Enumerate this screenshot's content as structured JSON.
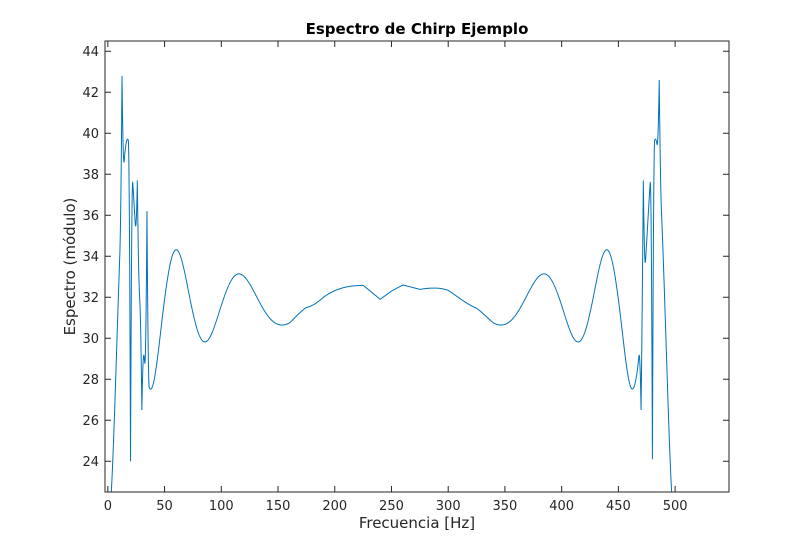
{
  "chart_data": {
    "type": "line",
    "title": "Espectro de Chirp Ejemplo",
    "xlabel": "Frecuencia [Hz]",
    "ylabel": "Espectro (módulo)",
    "xlim": [
      -2.5,
      547.5
    ],
    "ylim": [
      22.5,
      44.5
    ],
    "x_ticks": [
      0,
      50,
      100,
      150,
      200,
      250,
      300,
      350,
      400,
      450,
      500
    ],
    "x_tick_labels": [
      "0",
      "50",
      "100",
      "150",
      "200",
      "250",
      "300",
      "350",
      "400",
      "450",
      "500"
    ],
    "y_ticks": [
      24,
      26,
      28,
      30,
      32,
      34,
      36,
      38,
      40,
      42,
      44
    ],
    "y_tick_labels": [
      "24",
      "26",
      "28",
      "30",
      "32",
      "34",
      "36",
      "38",
      "40",
      "42",
      "44"
    ],
    "grid": false,
    "box": true,
    "series": [
      {
        "color": "#0072bd",
        "x_start": -2.5,
        "x_end": 500,
        "sample_step": 0.05,
        "baseline": 31.7,
        "envelope": [
          [
            0,
            11.0
          ],
          [
            5,
            10.5
          ],
          [
            12,
            9.5
          ],
          [
            20,
            7.5
          ],
          [
            25,
            6.0
          ],
          [
            35,
            4.5
          ],
          [
            50,
            3.0
          ],
          [
            75,
            2.1
          ],
          [
            100,
            1.6
          ],
          [
            130,
            1.3
          ],
          [
            160,
            1.0
          ],
          [
            175,
            0.5
          ],
          [
            190,
            1.0
          ],
          [
            225,
            0.9
          ],
          [
            240,
            0.2
          ],
          [
            250,
            0.6
          ],
          [
            260,
            0.9
          ],
          [
            275,
            0.7
          ],
          [
            300,
            1.0
          ],
          [
            325,
            0.6
          ],
          [
            340,
            1.0
          ],
          [
            370,
            1.3
          ],
          [
            400,
            1.6
          ],
          [
            425,
            2.1
          ],
          [
            450,
            3.0
          ],
          [
            465,
            4.5
          ],
          [
            475,
            6.0
          ],
          [
            480,
            7.5
          ],
          [
            488,
            9.5
          ],
          [
            495,
            10.5
          ],
          [
            500,
            11.0
          ]
        ],
        "peaks": [
          {
            "x": 12.5,
            "y": 42.8
          },
          {
            "x": 26,
            "y": 37.7
          },
          {
            "x": 34.5,
            "y": 36.2
          },
          {
            "x": 472,
            "y": 37.7
          },
          {
            "x": 486,
            "y": 42.6
          }
        ],
        "troughs": [
          {
            "x": 0,
            "y": 22.5
          },
          {
            "x": 20,
            "y": 24.0
          },
          {
            "x": 30,
            "y": 26.5
          },
          {
            "x": 470,
            "y": 26.5
          },
          {
            "x": 480,
            "y": 24.1
          },
          {
            "x": 500,
            "y": 22.5
          }
        ]
      }
    ]
  }
}
